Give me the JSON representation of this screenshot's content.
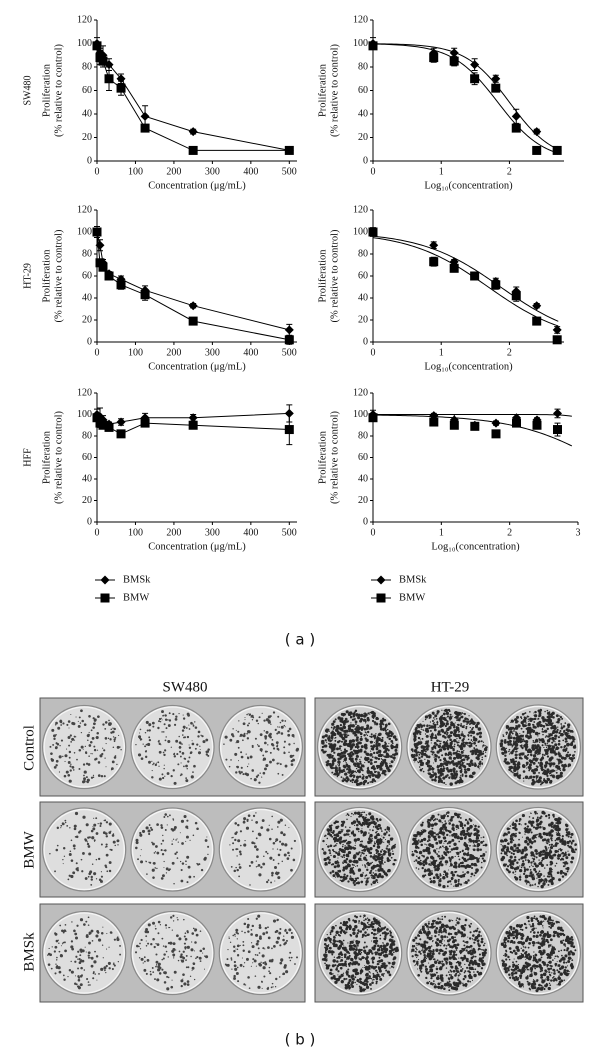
{
  "chart_data": [
    {
      "type": "line",
      "cell_line": "SW480",
      "ylabel": [
        "Proliferation",
        "(% relative to control)"
      ],
      "xlabel": "Concentration (μg/mL)",
      "x": [
        0,
        7.8,
        15.6,
        31.25,
        62.5,
        125,
        250,
        500
      ],
      "xlim": [
        0,
        520
      ],
      "xticks": [
        0,
        100,
        200,
        300,
        400,
        500
      ],
      "ylim": [
        0,
        120
      ],
      "yticks": [
        0,
        20,
        40,
        60,
        80,
        100,
        120
      ],
      "series": [
        {
          "marker": "diamond",
          "color": "#000",
          "values": [
            100,
            92,
            90,
            82,
            70,
            38,
            25,
            9
          ],
          "errors": [
            5,
            4,
            8,
            5,
            4,
            9,
            2,
            1
          ]
        },
        {
          "marker": "square",
          "color": "#000",
          "values": [
            98,
            88,
            85,
            70,
            62,
            28,
            9,
            9
          ],
          "errors": [
            3,
            6,
            5,
            10,
            6,
            3,
            2,
            2
          ]
        }
      ]
    },
    {
      "type": "scatter",
      "fit": "sigmoid",
      "ylabel": [
        "Proliferation",
        "(% relative to control)"
      ],
      "xlabel": "Log₁₀(concentration)",
      "x": [
        0,
        0.89,
        1.19,
        1.49,
        1.8,
        2.1,
        2.4,
        2.7
      ],
      "xlim": [
        0,
        2.8
      ],
      "xticks": [
        0,
        1,
        2
      ],
      "ylim": [
        0,
        120
      ],
      "yticks": [
        0,
        20,
        40,
        60,
        80,
        100,
        120
      ],
      "series": [
        {
          "marker": "diamond",
          "color": "#000",
          "values": [
            100,
            92,
            92,
            82,
            70,
            38,
            25,
            9
          ],
          "errors": [
            5,
            4,
            4,
            5,
            3,
            6,
            2,
            1
          ]
        },
        {
          "marker": "square",
          "color": "#000",
          "values": [
            98,
            88,
            85,
            70,
            62,
            28,
            9,
            9
          ],
          "errors": [
            3,
            4,
            4,
            5,
            3,
            3,
            2,
            2
          ]
        }
      ]
    },
    {
      "type": "line",
      "cell_line": "HT-29",
      "ylabel": [
        "Proliferation",
        "(% relative to control)"
      ],
      "xlabel": "Concentration (μg/mL)",
      "x": [
        0,
        7.8,
        15.6,
        31.25,
        62.5,
        125,
        250,
        500
      ],
      "xlim": [
        0,
        520
      ],
      "xticks": [
        0,
        100,
        200,
        300,
        400,
        500
      ],
      "ylim": [
        0,
        120
      ],
      "yticks": [
        0,
        20,
        40,
        60,
        80,
        100,
        120
      ],
      "series": [
        {
          "marker": "diamond",
          "color": "#000",
          "values": [
            100,
            88,
            72,
            62,
            57,
            47,
            33,
            11
          ],
          "errors": [
            3,
            5,
            3,
            2,
            3,
            4,
            2,
            5
          ]
        },
        {
          "marker": "square",
          "color": "#000",
          "values": [
            100,
            72,
            68,
            60,
            52,
            43,
            19,
            2
          ],
          "errors": [
            5,
            3,
            2,
            3,
            4,
            5,
            2,
            4
          ]
        }
      ]
    },
    {
      "type": "scatter",
      "fit": "sigmoid",
      "ylabel": [
        "Proliferation",
        "(% relative to control)"
      ],
      "xlabel": "Log₁₀(concentration)",
      "x": [
        0,
        0.89,
        1.19,
        1.49,
        1.8,
        2.1,
        2.4,
        2.7
      ],
      "xlim": [
        0,
        2.8
      ],
      "xticks": [
        0,
        1,
        2
      ],
      "ylim": [
        0,
        120
      ],
      "yticks": [
        0,
        20,
        40,
        60,
        80,
        100,
        120
      ],
      "series": [
        {
          "marker": "diamond",
          "color": "#000",
          "values": [
            100,
            88,
            73,
            60,
            55,
            46,
            33,
            11
          ],
          "errors": [
            3,
            3,
            2,
            2,
            3,
            4,
            2,
            3
          ]
        },
        {
          "marker": "square",
          "color": "#000",
          "values": [
            100,
            73,
            67,
            60,
            52,
            42,
            19,
            2
          ],
          "errors": [
            4,
            4,
            2,
            2,
            4,
            5,
            2,
            2
          ]
        }
      ]
    },
    {
      "type": "line",
      "cell_line": "HFF",
      "ylabel": [
        "Proliferation",
        "(% relative to control)"
      ],
      "xlabel": "Concentration (μg/mL)",
      "legend": "below",
      "x": [
        0,
        7.8,
        15.6,
        31.25,
        62.5,
        125,
        250,
        500
      ],
      "xlim": [
        0,
        520
      ],
      "xticks": [
        0,
        100,
        200,
        300,
        400,
        500
      ],
      "ylim": [
        0,
        120
      ],
      "yticks": [
        0,
        20,
        40,
        60,
        80,
        100,
        120
      ],
      "series": [
        {
          "name": "BMSk",
          "marker": "diamond",
          "color": "#000",
          "values": [
            100,
            98,
            95,
            91,
            93,
            97,
            97,
            101
          ],
          "errors": [
            5,
            8,
            4,
            2,
            3,
            4,
            3,
            8
          ]
        },
        {
          "name": "BMW",
          "marker": "square",
          "color": "#000",
          "values": [
            97,
            92,
            90,
            88,
            82,
            92,
            90,
            86
          ],
          "errors": [
            3,
            4,
            3,
            2,
            3,
            3,
            3,
            14
          ]
        }
      ]
    },
    {
      "type": "scatter",
      "fit": "sigmoid",
      "ylabel": [
        "Proliferation",
        "(% relative to control)"
      ],
      "xlabel": "Log₁₀(concentration)",
      "legend": "below",
      "x": [
        0,
        0.89,
        1.19,
        1.49,
        1.8,
        2.1,
        2.4,
        2.7
      ],
      "xlim": [
        0,
        3
      ],
      "xticks": [
        0,
        1,
        2,
        3
      ],
      "ylim": [
        0,
        120
      ],
      "yticks": [
        0,
        20,
        40,
        60,
        80,
        100,
        120
      ],
      "series": [
        {
          "name": "BMSk",
          "marker": "diamond",
          "color": "#000",
          "values": [
            100,
            99,
            95,
            90,
            92,
            97,
            95,
            101
          ],
          "errors": [
            4,
            2,
            5,
            2,
            2,
            3,
            2,
            4
          ]
        },
        {
          "name": "BMW",
          "marker": "square",
          "color": "#000",
          "values": [
            97,
            93,
            90,
            89,
            82,
            92,
            90,
            86
          ],
          "errors": [
            3,
            2,
            2,
            2,
            2,
            3,
            2,
            6
          ]
        }
      ]
    }
  ],
  "panel_labels": [
    "( a )",
    "( b )"
  ],
  "photos": {
    "columns": [
      "SW480",
      "HT-29"
    ],
    "rows": [
      "Control",
      "BMW",
      "BMSk"
    ]
  }
}
